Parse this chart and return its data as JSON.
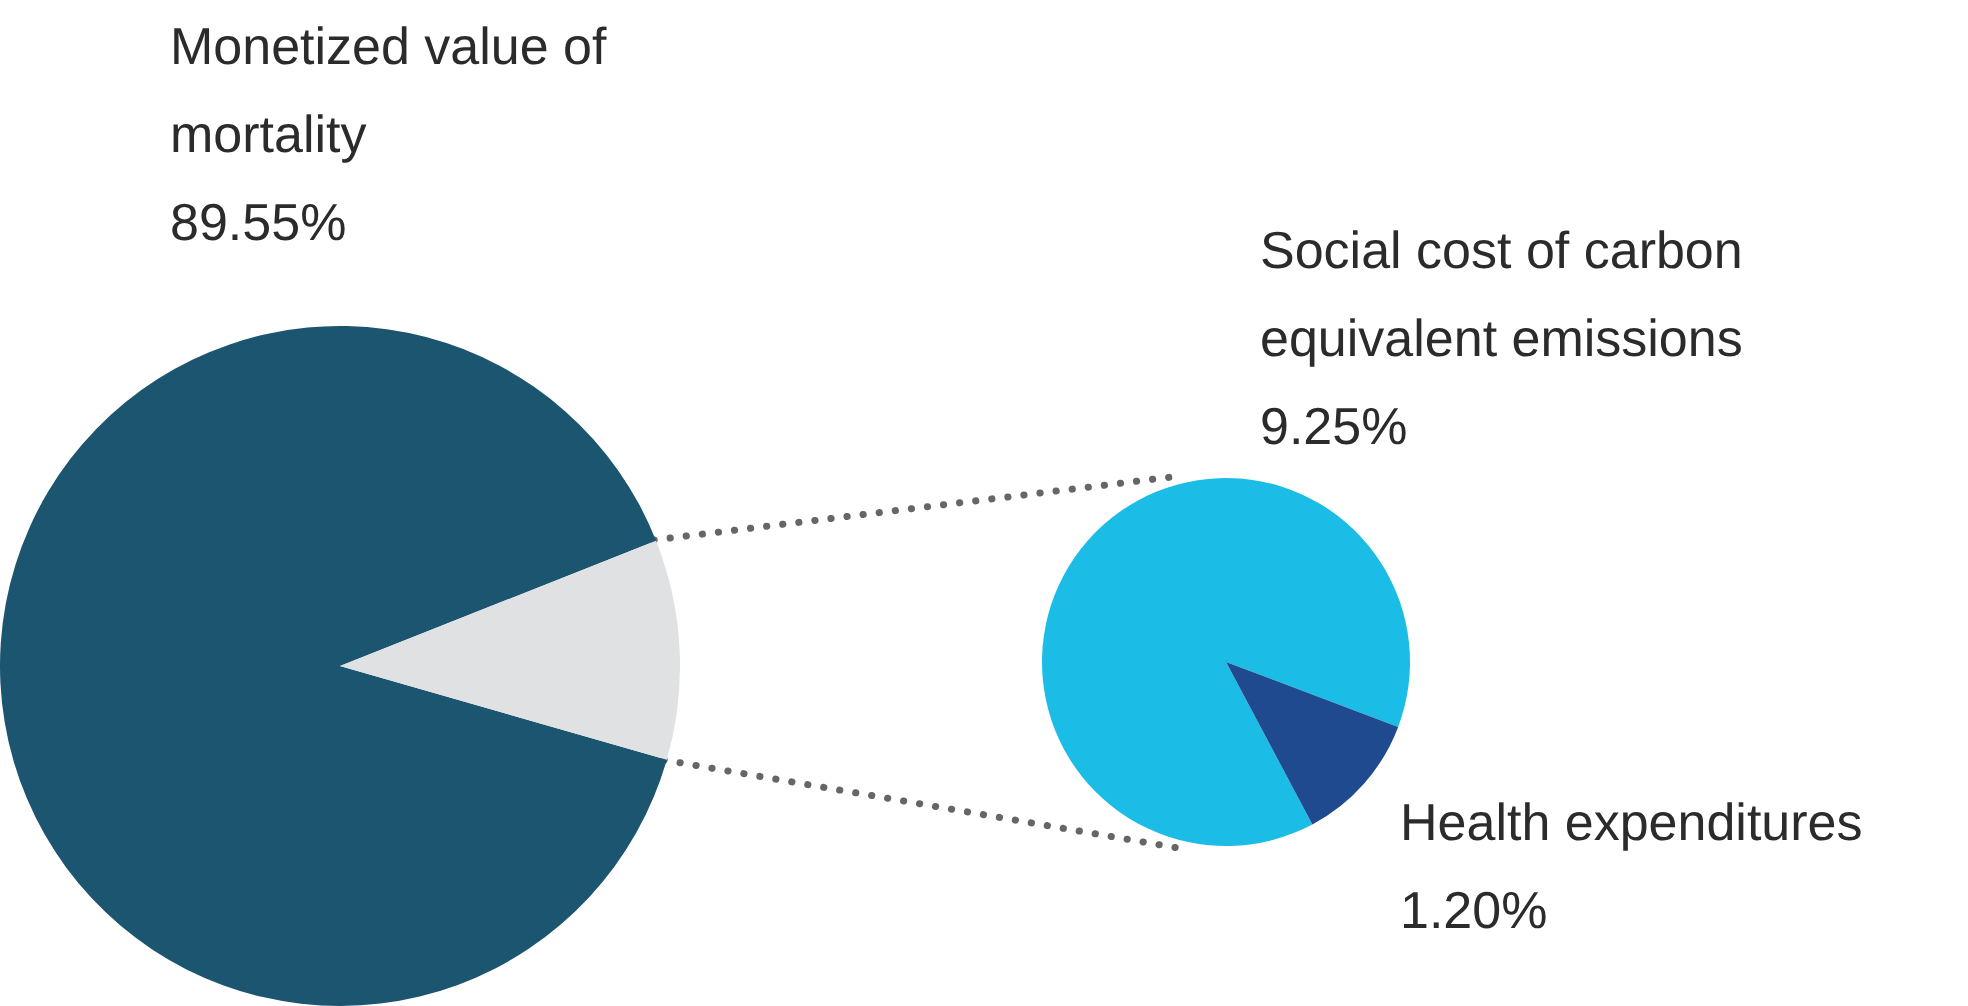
{
  "chart_data": [
    {
      "type": "pie",
      "categories": [
        "Monetized value of mortality",
        null
      ],
      "values": [
        89.55,
        10.45
      ],
      "colors": [
        "#1b5570",
        "#e0e1e3"
      ],
      "value_labels": [
        "89.55%",
        null
      ]
    },
    {
      "type": "pie",
      "categories": [
        "Social cost of carbon equivalent emissions",
        "Health expenditures"
      ],
      "values": [
        9.25,
        1.2
      ],
      "colors": [
        "#1bbde6",
        "#1f4a8f"
      ],
      "value_labels": [
        "9.25%",
        "1.20%"
      ]
    }
  ]
}
